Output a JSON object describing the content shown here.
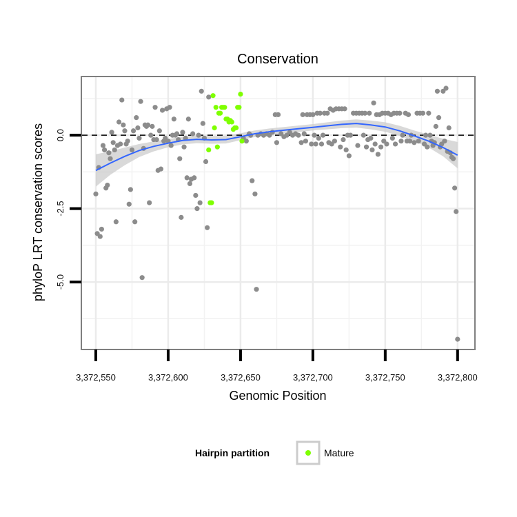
{
  "chart_data": {
    "type": "scatter",
    "title": "Conservation",
    "xlabel": "Genomic Position",
    "ylabel": "phyloP LRT conservation scores",
    "xlim": [
      3372540,
      3372812
    ],
    "ylim": [
      -7.3,
      2.0
    ],
    "x_ticks": [
      3372550,
      3372600,
      3372650,
      3372700,
      3372750,
      3372800
    ],
    "x_tick_labels": [
      "3,372,550",
      "3,372,600",
      "3,372,650",
      "3,372,700",
      "3,372,750",
      "3,372,800"
    ],
    "y_ticks": [
      0.0,
      -2.5,
      -5.0
    ],
    "y_tick_labels": [
      "0.0",
      "-2.5",
      "-5.0"
    ],
    "minor_y": [
      1.25,
      -1.25,
      -3.75,
      -6.25
    ],
    "minor_x": [
      3372575,
      3372625,
      3372675,
      3372725,
      3372775
    ],
    "reference_line_y": 0.0,
    "grid": true,
    "colors": {
      "other": "#8c8c8c",
      "mature": "#7fff00",
      "smooth": "#3366ff",
      "band": "#cccccc"
    },
    "legend": {
      "title": "Hairpin partition",
      "placement": "bottom",
      "entries": [
        {
          "label": "Mature",
          "color": "#7fff00"
        }
      ]
    },
    "series": [
      {
        "group": "other",
        "points": [
          [
            3372550,
            -2.0
          ],
          [
            3372551,
            -3.35
          ],
          [
            3372552,
            -1.1
          ],
          [
            3372553,
            -3.45
          ],
          [
            3372554,
            -3.2
          ],
          [
            3372555,
            -0.35
          ],
          [
            3372556,
            -0.5
          ],
          [
            3372557,
            -1.8
          ],
          [
            3372558,
            -1.7
          ],
          [
            3372559,
            -0.6
          ],
          [
            3372560,
            -0.8
          ],
          [
            3372561,
            0.1
          ],
          [
            3372562,
            -0.25
          ],
          [
            3372563,
            -0.5
          ],
          [
            3372564,
            -2.95
          ],
          [
            3372565,
            -0.35
          ],
          [
            3372566,
            0.45
          ],
          [
            3372567,
            -0.3
          ],
          [
            3372568,
            1.2
          ],
          [
            3372569,
            0.35
          ],
          [
            3372570,
            0.15
          ],
          [
            3372571,
            -0.3
          ],
          [
            3372572,
            -0.2
          ],
          [
            3372573,
            -2.35
          ],
          [
            3372574,
            -1.85
          ],
          [
            3372575,
            -0.5
          ],
          [
            3372576,
            0.15
          ],
          [
            3372577,
            -2.95
          ],
          [
            3372578,
            0.6
          ],
          [
            3372579,
            0.25
          ],
          [
            3372580,
            -0.1
          ],
          [
            3372581,
            1.15
          ],
          [
            3372582,
            -4.85
          ],
          [
            3372583,
            -0.45
          ],
          [
            3372584,
            0.35
          ],
          [
            3372585,
            0.3
          ],
          [
            3372586,
            0.35
          ],
          [
            3372587,
            -2.3
          ],
          [
            3372588,
            0.0
          ],
          [
            3372589,
            0.3
          ],
          [
            3372590,
            -0.15
          ],
          [
            3372591,
            0.95
          ],
          [
            3372592,
            -0.15
          ],
          [
            3372593,
            -1.2
          ],
          [
            3372594,
            0.15
          ],
          [
            3372595,
            -1.15
          ],
          [
            3372596,
            0.85
          ],
          [
            3372597,
            -0.2
          ],
          [
            3372598,
            -0.1
          ],
          [
            3372599,
            0.9
          ],
          [
            3372600,
            -0.2
          ],
          [
            3372601,
            0.95
          ],
          [
            3372602,
            -0.35
          ],
          [
            3372603,
            0.0
          ],
          [
            3372604,
            0.55
          ],
          [
            3372605,
            0.0
          ],
          [
            3372606,
            0.05
          ],
          [
            3372607,
            -0.15
          ],
          [
            3372608,
            -0.8
          ],
          [
            3372609,
            -2.8
          ],
          [
            3372610,
            0.1
          ],
          [
            3372611,
            -0.4
          ],
          [
            3372612,
            -0.1
          ],
          [
            3372613,
            -1.45
          ],
          [
            3372614,
            0.55
          ],
          [
            3372615,
            -1.65
          ],
          [
            3372616,
            -1.5
          ],
          [
            3372617,
            0.05
          ],
          [
            3372618,
            -1.45
          ],
          [
            3372619,
            -2.05
          ],
          [
            3372620,
            -2.5
          ],
          [
            3372621,
            0.0
          ],
          [
            3372622,
            -2.3
          ],
          [
            3372623,
            1.5
          ],
          [
            3372624,
            0.4
          ],
          [
            3372625,
            -0.1
          ],
          [
            3372626,
            -0.9
          ],
          [
            3372627,
            -3.15
          ],
          [
            3372628,
            1.3
          ],
          [
            3372652,
            -0.1
          ],
          [
            3372654,
            -0.2
          ],
          [
            3372656,
            0.05
          ],
          [
            3372657,
            0.0
          ],
          [
            3372658,
            -1.55
          ],
          [
            3372660,
            -2.0
          ],
          [
            3372661,
            -5.25
          ],
          [
            3372662,
            0.0
          ],
          [
            3372664,
            0.05
          ],
          [
            3372666,
            0.0
          ],
          [
            3372668,
            0.05
          ],
          [
            3372670,
            0.0
          ],
          [
            3372672,
            0.1
          ],
          [
            3372674,
            0.7
          ],
          [
            3372675,
            -0.25
          ],
          [
            3372676,
            0.7
          ],
          [
            3372678,
            0.05
          ],
          [
            3372680,
            -0.05
          ],
          [
            3372682,
            0.0
          ],
          [
            3372684,
            0.1
          ],
          [
            3372686,
            0.0
          ],
          [
            3372688,
            0.05
          ],
          [
            3372690,
            0.0
          ],
          [
            3372692,
            -0.25
          ],
          [
            3372693,
            0.7
          ],
          [
            3372694,
            0.05
          ],
          [
            3372695,
            -0.2
          ],
          [
            3372696,
            0.7
          ],
          [
            3372698,
            0.7
          ],
          [
            3372699,
            -0.3
          ],
          [
            3372700,
            0.7
          ],
          [
            3372701,
            0.0
          ],
          [
            3372702,
            -0.3
          ],
          [
            3372703,
            0.75
          ],
          [
            3372704,
            -0.1
          ],
          [
            3372705,
            0.75
          ],
          [
            3372706,
            -0.3
          ],
          [
            3372707,
            0.0
          ],
          [
            3372708,
            0.75
          ],
          [
            3372710,
            0.75
          ],
          [
            3372711,
            -0.25
          ],
          [
            3372712,
            0.9
          ],
          [
            3372713,
            -0.3
          ],
          [
            3372714,
            0.85
          ],
          [
            3372715,
            -0.2
          ],
          [
            3372716,
            0.9
          ],
          [
            3372718,
            0.9
          ],
          [
            3372719,
            -0.4
          ],
          [
            3372720,
            0.9
          ],
          [
            3372721,
            -0.15
          ],
          [
            3372722,
            0.9
          ],
          [
            3372723,
            -0.5
          ],
          [
            3372724,
            0.0
          ],
          [
            3372725,
            -0.7
          ],
          [
            3372726,
            0.0
          ],
          [
            3372728,
            0.75
          ],
          [
            3372730,
            0.75
          ],
          [
            3372731,
            -0.35
          ],
          [
            3372732,
            0.75
          ],
          [
            3372734,
            0.75
          ],
          [
            3372735,
            0.0
          ],
          [
            3372736,
            0.75
          ],
          [
            3372737,
            -0.4
          ],
          [
            3372738,
            -0.15
          ],
          [
            3372739,
            0.75
          ],
          [
            3372740,
            -0.1
          ],
          [
            3372741,
            -0.5
          ],
          [
            3372742,
            1.1
          ],
          [
            3372743,
            -0.3
          ],
          [
            3372744,
            0.7
          ],
          [
            3372745,
            -0.65
          ],
          [
            3372746,
            0.7
          ],
          [
            3372747,
            -0.4
          ],
          [
            3372748,
            0.75
          ],
          [
            3372749,
            -0.2
          ],
          [
            3372750,
            0.75
          ],
          [
            3372751,
            -0.3
          ],
          [
            3372752,
            0.75
          ],
          [
            3372754,
            0.7
          ],
          [
            3372755,
            -0.1
          ],
          [
            3372756,
            0.75
          ],
          [
            3372757,
            -0.3
          ],
          [
            3372758,
            0.75
          ],
          [
            3372760,
            0.75
          ],
          [
            3372761,
            -0.2
          ],
          [
            3372762,
            0.0
          ],
          [
            3372764,
            0.75
          ],
          [
            3372765,
            -0.2
          ],
          [
            3372766,
            0.7
          ],
          [
            3372767,
            -0.2
          ],
          [
            3372768,
            0.0
          ],
          [
            3372770,
            -0.25
          ],
          [
            3372772,
            0.75
          ],
          [
            3372773,
            -0.2
          ],
          [
            3372774,
            0.75
          ],
          [
            3372776,
            0.75
          ],
          [
            3372777,
            -0.3
          ],
          [
            3372778,
            0.0
          ],
          [
            3372779,
            -0.4
          ],
          [
            3372780,
            0.75
          ],
          [
            3372781,
            0.0
          ],
          [
            3372782,
            -0.2
          ],
          [
            3372783,
            -0.35
          ],
          [
            3372784,
            -0.25
          ],
          [
            3372785,
            0.3
          ],
          [
            3372786,
            1.5
          ],
          [
            3372787,
            0.6
          ],
          [
            3372788,
            -0.4
          ],
          [
            3372789,
            -0.3
          ],
          [
            3372790,
            1.5
          ],
          [
            3372791,
            -0.2
          ],
          [
            3372792,
            1.6
          ],
          [
            3372793,
            -0.55
          ],
          [
            3372794,
            0.25
          ],
          [
            3372795,
            -0.6
          ],
          [
            3372796,
            -0.75
          ],
          [
            3372797,
            -0.8
          ],
          [
            3372798,
            -1.8
          ],
          [
            3372799,
            -2.6
          ],
          [
            3372800,
            -6.95
          ]
        ]
      },
      {
        "group": "mature",
        "name": "Mature",
        "points": [
          [
            3372628,
            -0.5
          ],
          [
            3372629,
            -2.3
          ],
          [
            3372630,
            -2.3
          ],
          [
            3372631,
            1.35
          ],
          [
            3372632,
            0.25
          ],
          [
            3372633,
            0.95
          ],
          [
            3372634,
            -0.4
          ],
          [
            3372635,
            0.75
          ],
          [
            3372636,
            0.75
          ],
          [
            3372637,
            0.95
          ],
          [
            3372638,
            0.95
          ],
          [
            3372639,
            0.95
          ],
          [
            3372640,
            0.55
          ],
          [
            3372641,
            0.55
          ],
          [
            3372642,
            0.45
          ],
          [
            3372643,
            0.5
          ],
          [
            3372644,
            0.45
          ],
          [
            3372645,
            0.2
          ],
          [
            3372646,
            0.25
          ],
          [
            3372647,
            0.25
          ],
          [
            3372648,
            0.95
          ],
          [
            3372649,
            0.95
          ],
          [
            3372650,
            1.4
          ],
          [
            3372651,
            -0.2
          ]
        ]
      }
    ],
    "smooth": [
      [
        3372550,
        -1.2
      ],
      [
        3372560,
        -0.95
      ],
      [
        3372570,
        -0.72
      ],
      [
        3372580,
        -0.52
      ],
      [
        3372590,
        -0.38
      ],
      [
        3372600,
        -0.27
      ],
      [
        3372610,
        -0.18
      ],
      [
        3372620,
        -0.14
      ],
      [
        3372630,
        -0.16
      ],
      [
        3372640,
        -0.15
      ],
      [
        3372650,
        -0.05
      ],
      [
        3372660,
        0.05
      ],
      [
        3372670,
        0.12
      ],
      [
        3372680,
        0.17
      ],
      [
        3372690,
        0.22
      ],
      [
        3372700,
        0.27
      ],
      [
        3372710,
        0.32
      ],
      [
        3372720,
        0.37
      ],
      [
        3372730,
        0.4
      ],
      [
        3372740,
        0.35
      ],
      [
        3372750,
        0.28
      ],
      [
        3372760,
        0.15
      ],
      [
        3372770,
        -0.02
      ],
      [
        3372780,
        -0.2
      ],
      [
        3372790,
        -0.42
      ],
      [
        3372800,
        -0.68
      ]
    ],
    "band_halfwidth": [
      0.55,
      0.4,
      0.3,
      0.22,
      0.17,
      0.14,
      0.13,
      0.13,
      0.13,
      0.13,
      0.12,
      0.11,
      0.11,
      0.11,
      0.11,
      0.11,
      0.12,
      0.13,
      0.14,
      0.15,
      0.16,
      0.17,
      0.18,
      0.22,
      0.3,
      0.45
    ]
  }
}
